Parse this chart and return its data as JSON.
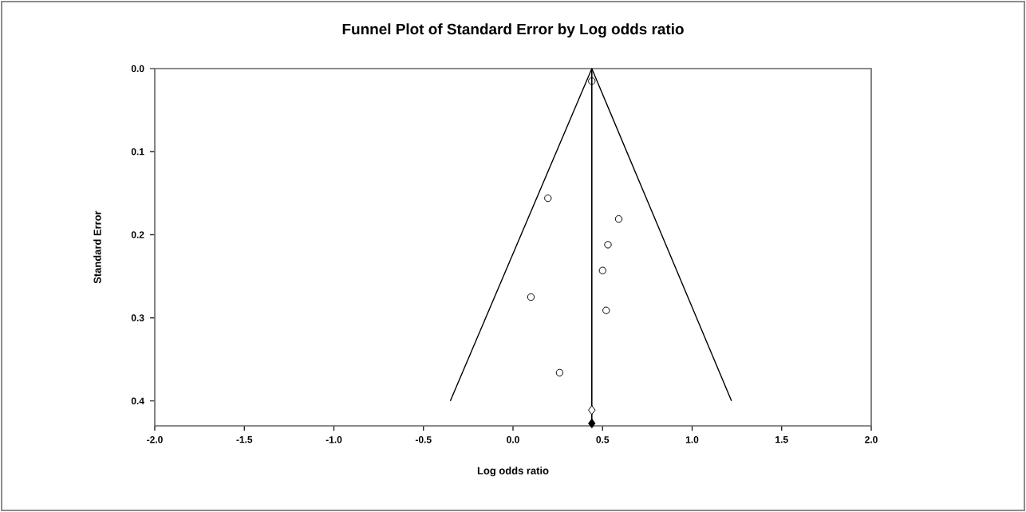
{
  "chart_data": {
    "type": "scatter",
    "title": "Funnel Plot of Standard Error by Log odds ratio",
    "xlabel": "Log odds ratio",
    "ylabel": "Standard Error",
    "xlim": [
      -2.0,
      2.0
    ],
    "xticks": [
      {
        "value": -2,
        "label": "-2.0"
      },
      {
        "value": -1.5,
        "label": "-1.5"
      },
      {
        "value": -1,
        "label": "-1.0"
      },
      {
        "value": -0.5,
        "label": "-0.5"
      },
      {
        "value": 0,
        "label": "0.0"
      },
      {
        "value": 0.5,
        "label": "0.5"
      },
      {
        "value": 1,
        "label": "1.0"
      },
      {
        "value": 1.5,
        "label": "1.5"
      },
      {
        "value": 2,
        "label": "2.0"
      }
    ],
    "ylim": [
      0.43,
      0.0
    ],
    "yticks": [
      {
        "value": 0,
        "label": "0.0"
      },
      {
        "value": 0.1,
        "label": "0.1"
      },
      {
        "value": 0.2,
        "label": "0.2"
      },
      {
        "value": 0.3,
        "label": "0.3"
      },
      {
        "value": 0.4,
        "label": "0.4"
      }
    ],
    "grid": false,
    "ref_lines": [
      {
        "axis": "x",
        "value": 0.44,
        "color": "#000000"
      }
    ],
    "series": [
      {
        "marker": "circle",
        "color": "#000000",
        "x": [
          0.44,
          0.195,
          0.59,
          0.53,
          0.5,
          0.1,
          0.52,
          0.26
        ],
        "values": [
          0.015,
          0.156,
          0.181,
          0.212,
          0.243,
          0.275,
          0.291,
          0.366
        ]
      },
      {
        "type": "line",
        "marker": "none",
        "color": "#000000",
        "x": [
          -0.35,
          0.44,
          1.22
        ],
        "values": [
          0.4,
          0.0,
          0.4
        ]
      },
      {
        "marker": "diamond",
        "color": "#ffffff",
        "x": [
          0.44
        ],
        "values": [
          0.411
        ]
      },
      {
        "marker": "diamond",
        "color": "#000000",
        "x": [
          0.44
        ],
        "values": [
          0.427
        ]
      }
    ]
  }
}
